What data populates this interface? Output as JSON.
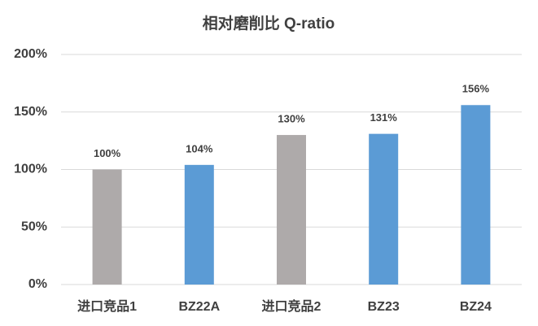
{
  "chart_data": {
    "type": "bar",
    "title": "相对磨削比 Q-ratio",
    "categories": [
      "进口竞品1",
      "BZ22A",
      "进口竞品2",
      "BZ23",
      "BZ24"
    ],
    "values": [
      100,
      104,
      130,
      131,
      156
    ],
    "value_labels": [
      "100%",
      "104%",
      "130%",
      "131%",
      "156%"
    ],
    "colors": [
      "#aeaaaa",
      "#5b9bd5",
      "#aeaaaa",
      "#5b9bd5",
      "#5b9bd5"
    ],
    "ylim": [
      0,
      200
    ],
    "yticks": [
      {
        "value": 0,
        "label": "0%"
      },
      {
        "value": 50,
        "label": "50%"
      },
      {
        "value": 100,
        "label": "100%"
      },
      {
        "value": 150,
        "label": "150%"
      },
      {
        "value": 200,
        "label": "200%"
      }
    ],
    "grid": true
  }
}
